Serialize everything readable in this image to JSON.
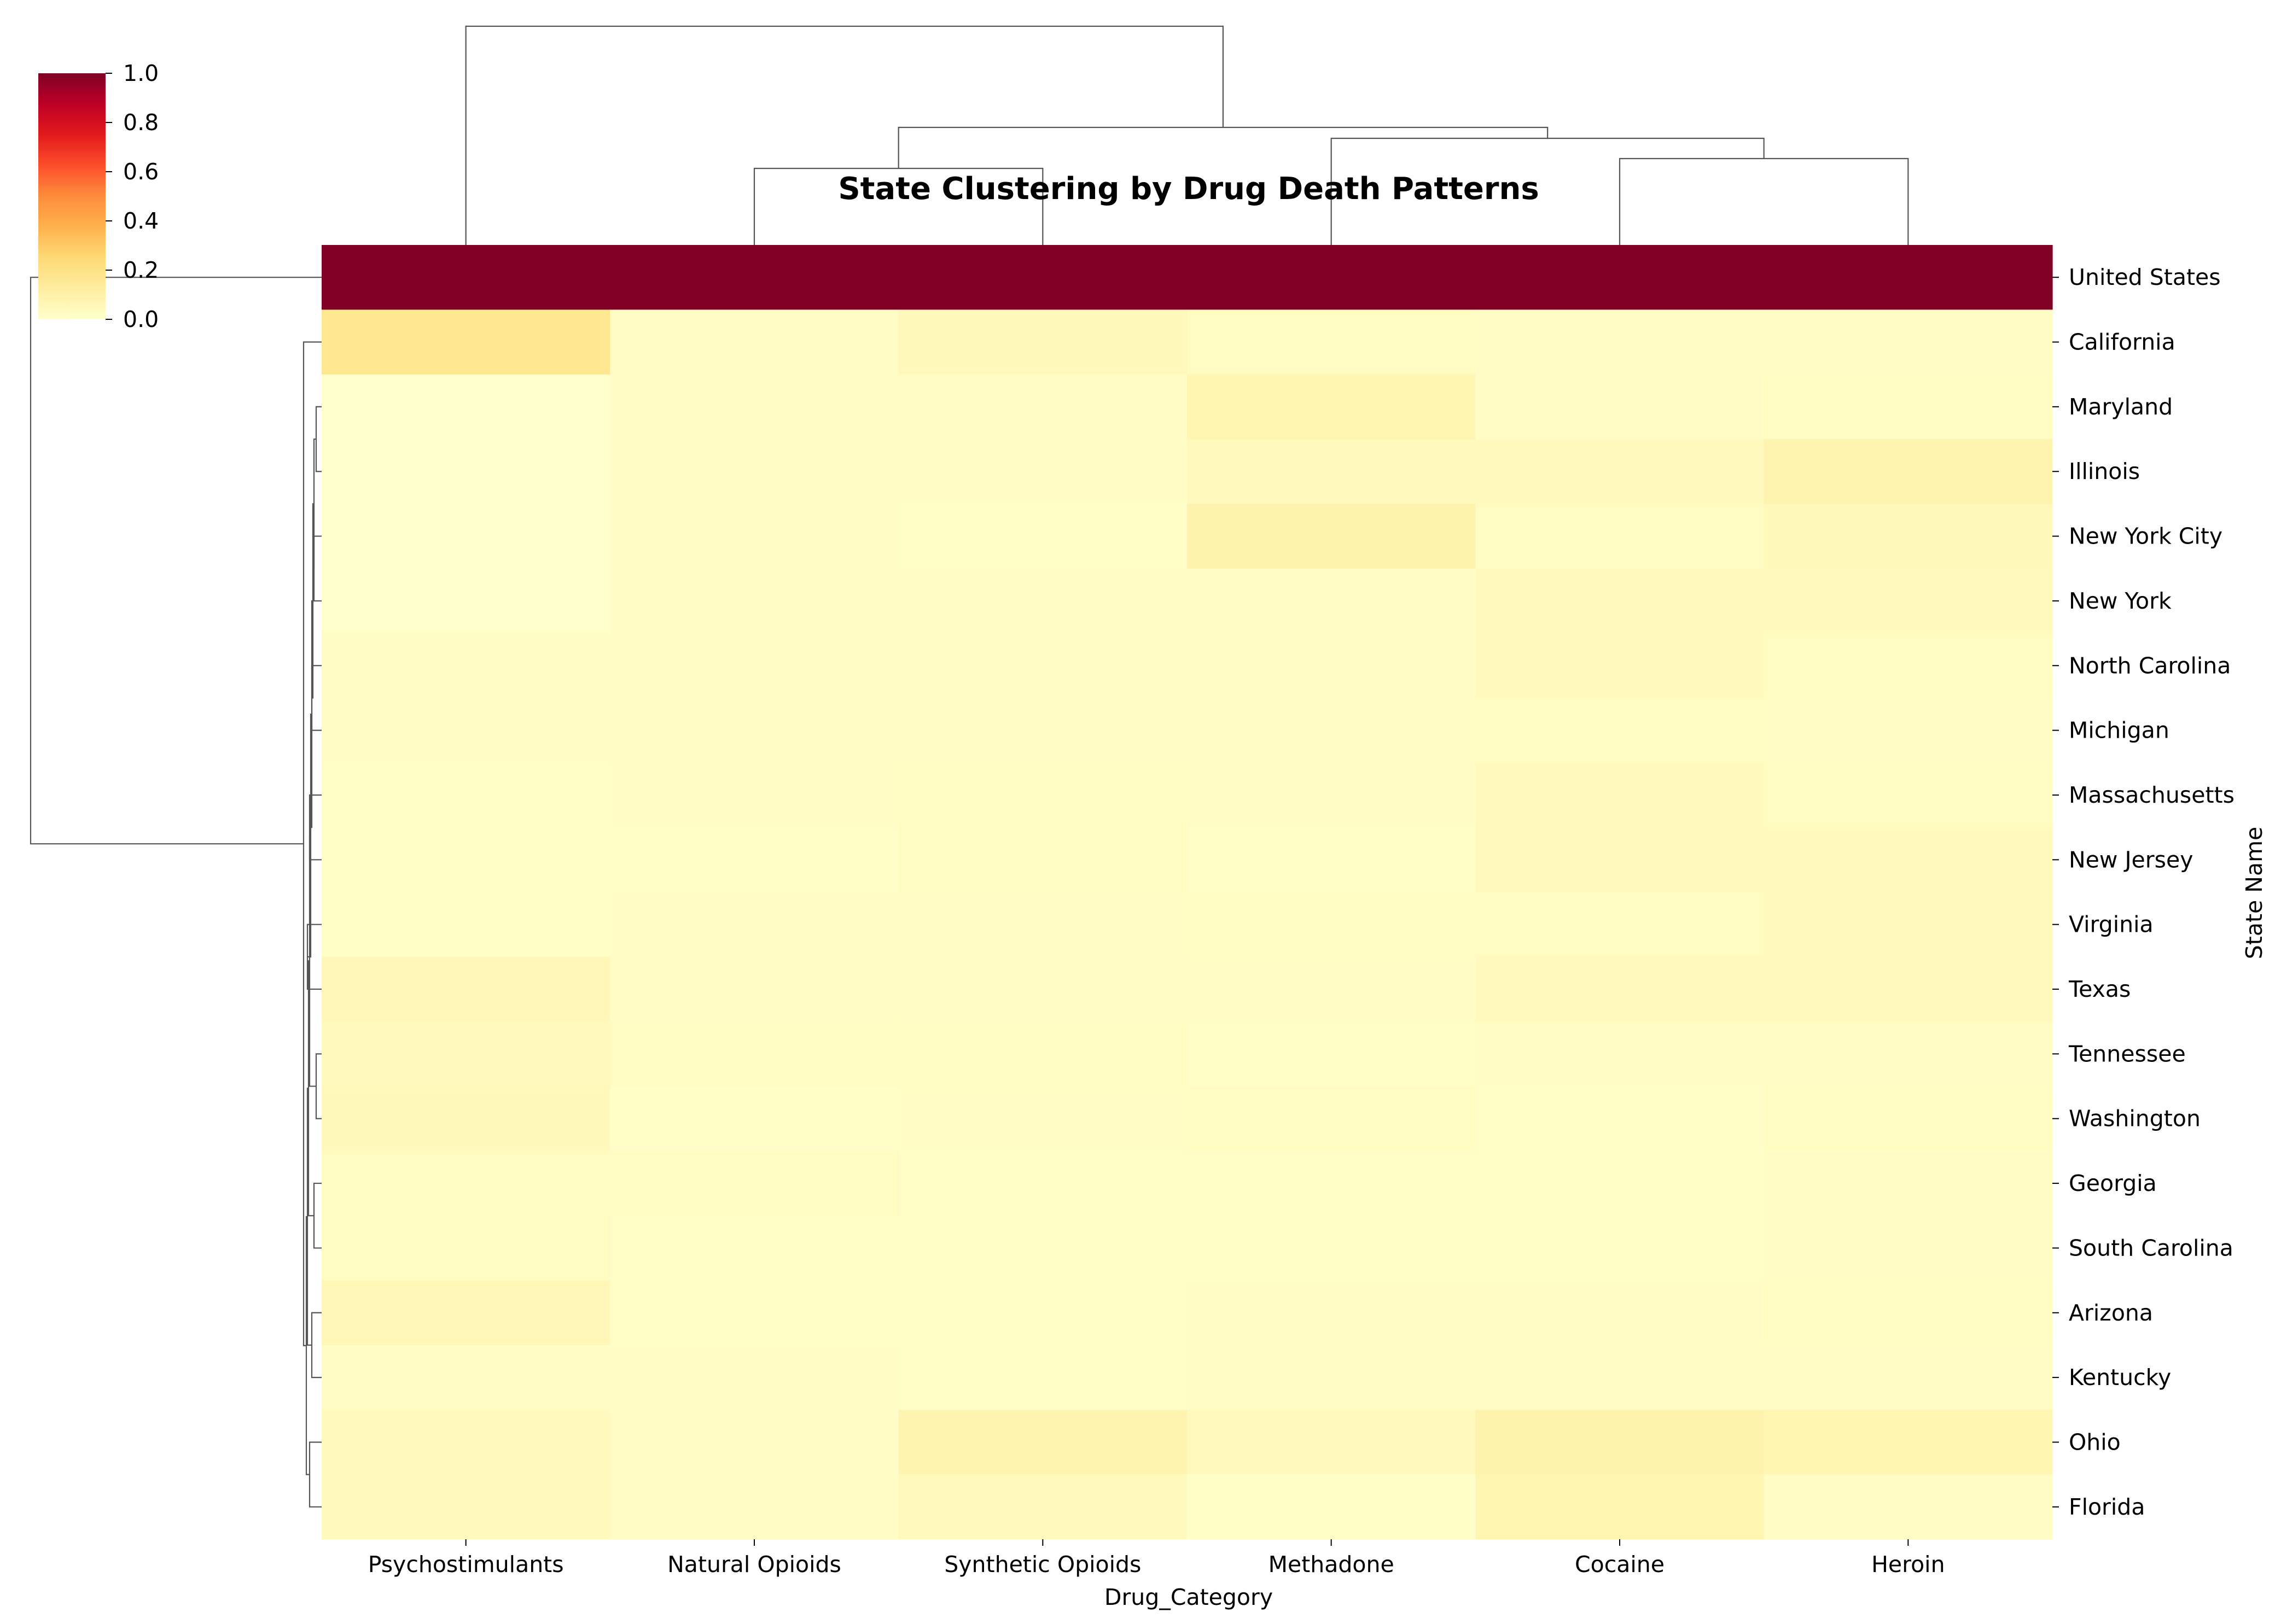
{
  "chart_data": {
    "type": "heatmap",
    "title": "State Clustering by Drug Death Patterns",
    "xlabel": "Drug_Category",
    "ylabel": "State Name",
    "columns": [
      "Psychostimulants",
      "Natural Opioids",
      "Synthetic Opioids",
      "Methadone",
      "Cocaine",
      "Heroin"
    ],
    "rows": [
      "United States",
      "California",
      "Maryland",
      "Illinois",
      "New York City",
      "New York",
      "North Carolina",
      "Michigan",
      "Massachusetts",
      "New Jersey",
      "Virginia",
      "Texas",
      "Tennessee",
      "Washington",
      "Georgia",
      "South Carolina",
      "Arizona",
      "Kentucky",
      "Ohio",
      "Florida"
    ],
    "values": [
      [
        1.0,
        1.0,
        1.0,
        1.0,
        1.0,
        1.0
      ],
      [
        0.17,
        0.02,
        0.05,
        0.03,
        0.02,
        0.02
      ],
      [
        0.0,
        0.02,
        0.02,
        0.07,
        0.02,
        0.03
      ],
      [
        0.0,
        0.02,
        0.02,
        0.04,
        0.04,
        0.08
      ],
      [
        0.0,
        0.02,
        0.01,
        0.09,
        0.03,
        0.05
      ],
      [
        0.0,
        0.02,
        0.02,
        0.02,
        0.04,
        0.04
      ],
      [
        0.02,
        0.02,
        0.02,
        0.02,
        0.04,
        0.03
      ],
      [
        0.02,
        0.02,
        0.02,
        0.02,
        0.03,
        0.02
      ],
      [
        0.01,
        0.02,
        0.03,
        0.02,
        0.04,
        0.03
      ],
      [
        0.01,
        0.01,
        0.03,
        0.01,
        0.04,
        0.04
      ],
      [
        0.01,
        0.02,
        0.02,
        0.03,
        0.03,
        0.04
      ],
      [
        0.06,
        0.02,
        0.02,
        0.02,
        0.04,
        0.04
      ],
      [
        0.04,
        0.03,
        0.03,
        0.01,
        0.02,
        0.02
      ],
      [
        0.05,
        0.01,
        0.02,
        0.03,
        0.01,
        0.03
      ],
      [
        0.03,
        0.03,
        0.01,
        0.01,
        0.01,
        0.02
      ],
      [
        0.03,
        0.01,
        0.01,
        0.01,
        0.01,
        0.02
      ],
      [
        0.06,
        0.01,
        0.01,
        0.02,
        0.02,
        0.03
      ],
      [
        0.02,
        0.02,
        0.01,
        0.02,
        0.02,
        0.02
      ],
      [
        0.04,
        0.02,
        0.08,
        0.04,
        0.09,
        0.07
      ],
      [
        0.04,
        0.02,
        0.04,
        0.01,
        0.07,
        0.02
      ]
    ],
    "colormap": "YlOrRd",
    "colormap_stops": [
      "#ffffcc",
      "#ffeda0",
      "#fed976",
      "#feb24c",
      "#fd8d3c",
      "#fc4e2a",
      "#e31a1c",
      "#bd0026",
      "#800026"
    ],
    "colorbar": {
      "range": [
        0,
        1
      ],
      "ticks": [
        "0.0",
        "0.2",
        "0.4",
        "0.6",
        "0.8",
        "1.0"
      ]
    },
    "column_dendrogram": [
      {
        "name": "Psychostimulants",
        "children": [
          {
            "children": [
              {
                "name": "Natural Opioids",
                "children": [
                  {
                    "name": "Natural Opioids"
                  },
                  {
                    "name": "Synthetic Opioids"
                  }
                ]
              },
              {
                "name": "Methadone",
                "children": [
                  {
                    "name": "Methadone"
                  },
                  {
                    "children": [
                      {
                        "name": "Cocaine"
                      },
                      {
                        "name": "Heroin"
                      }
                    ]
                  }
                ]
              }
            ]
          }
        ]
      }
    ],
    "grid": false,
    "colorbar_position": "top-left",
    "dendrograms": [
      "top",
      "left"
    ]
  }
}
